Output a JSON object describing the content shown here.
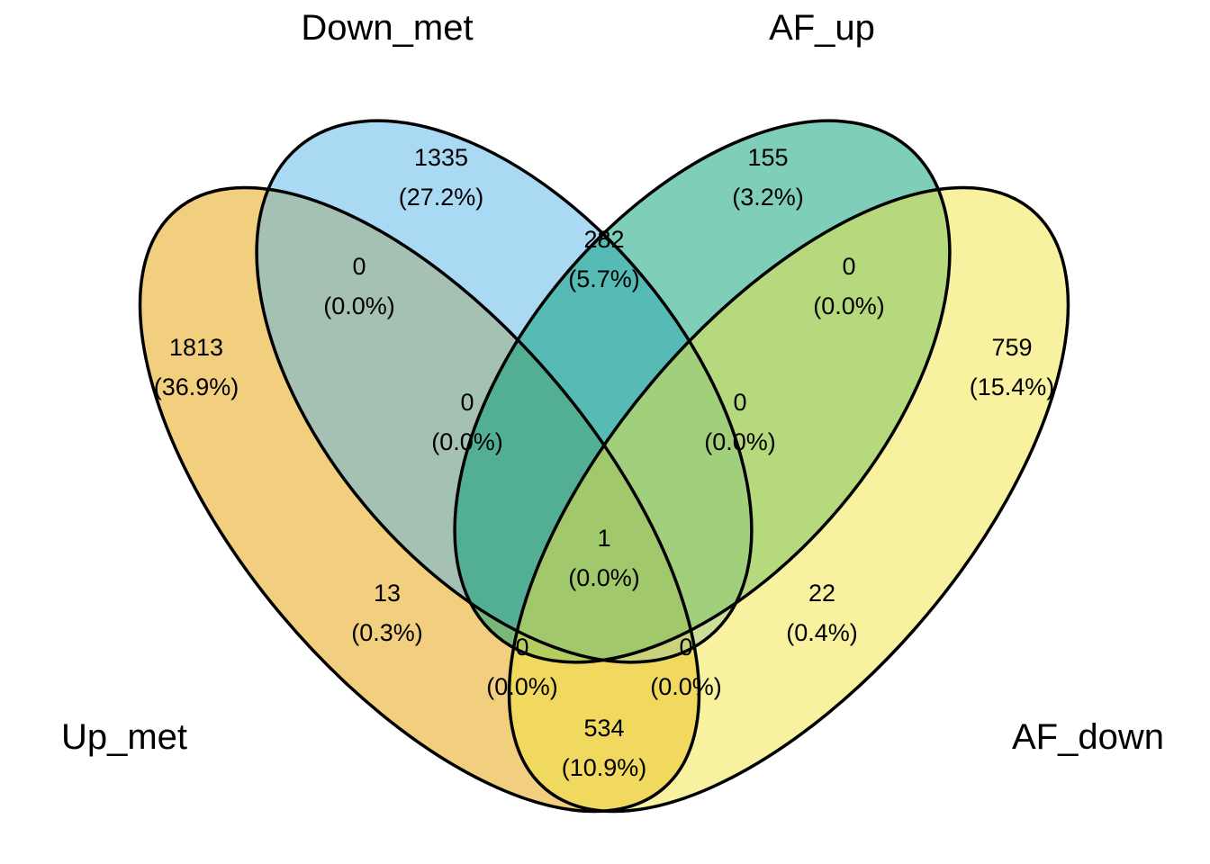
{
  "sets": [
    {
      "key": "up_met",
      "label": "Up_met",
      "color": "#E69F00"
    },
    {
      "key": "down_met",
      "label": "Down_met",
      "color": "#56B4E9"
    },
    {
      "key": "af_up",
      "label": "AF_up",
      "color": "#009E73"
    },
    {
      "key": "af_down",
      "label": "AF_down",
      "color": "#F0E442"
    }
  ],
  "regions": [
    {
      "key": "up_met_only",
      "count": "1813",
      "percent": "(36.9%)"
    },
    {
      "key": "down_met_only",
      "count": "1335",
      "percent": "(27.2%)"
    },
    {
      "key": "af_up_only",
      "count": "155",
      "percent": "(3.2%)"
    },
    {
      "key": "af_down_only",
      "count": "759",
      "percent": "(15.4%)"
    },
    {
      "key": "up_met_down_met",
      "count": "0",
      "percent": "(0.0%)"
    },
    {
      "key": "down_met_af_up",
      "count": "282",
      "percent": "(5.7%)"
    },
    {
      "key": "af_up_af_down",
      "count": "0",
      "percent": "(0.0%)"
    },
    {
      "key": "up_met_down_met_af_up",
      "count": "0",
      "percent": "(0.0%)"
    },
    {
      "key": "down_met_af_up_af_down",
      "count": "0",
      "percent": "(0.0%)"
    },
    {
      "key": "all_four",
      "count": "1",
      "percent": "(0.0%)"
    },
    {
      "key": "up_met_af_up",
      "count": "13",
      "percent": "(0.3%)"
    },
    {
      "key": "down_met_af_down",
      "count": "22",
      "percent": "(0.4%)"
    },
    {
      "key": "up_met_af_up_af_down",
      "count": "0",
      "percent": "(0.0%)"
    },
    {
      "key": "up_met_down_met_af_down",
      "count": "0",
      "percent": "(0.0%)"
    },
    {
      "key": "up_met_af_down",
      "count": "534",
      "percent": "(10.9%)"
    }
  ]
}
